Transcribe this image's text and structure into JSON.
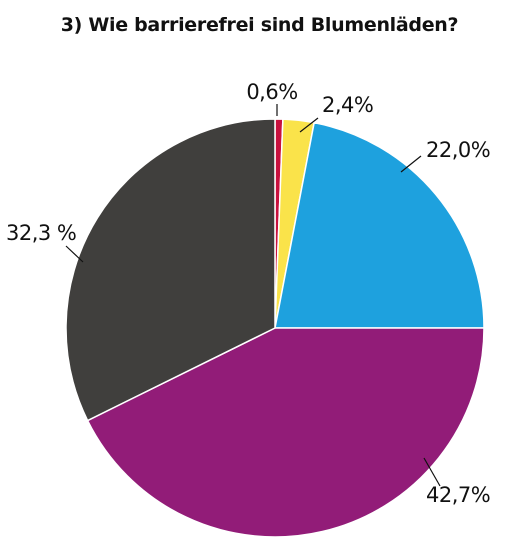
{
  "chart_data": {
    "type": "pie",
    "title": "3) Wie barrierefrei sind Blumenläden?",
    "start_angle_deg": 0,
    "direction": "clockwise",
    "slices": [
      {
        "value": 0.6,
        "label": "0,6%",
        "color": "#c8103e"
      },
      {
        "value": 2.4,
        "label": "2,4%",
        "color": "#fae34a"
      },
      {
        "value": 22.0,
        "label": "22,0%",
        "color": "#1ea1de"
      },
      {
        "value": 42.7,
        "label": "42,7%",
        "color": "#921c78"
      },
      {
        "value": 32.3,
        "label": "32,3 %",
        "color": "#403f3d"
      }
    ],
    "slice_border_color": "#ffffff",
    "legend": "none"
  }
}
